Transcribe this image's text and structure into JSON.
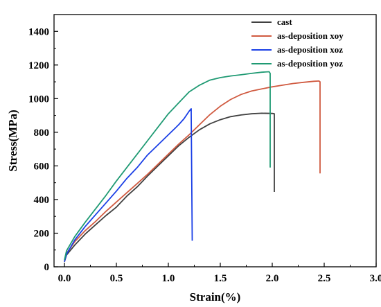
{
  "chart_data": {
    "type": "line",
    "xlabel": "Strain(%)",
    "ylabel": "Stress(MPa)",
    "xlim": [
      -0.1,
      3.0
    ],
    "ylim": [
      0,
      1500
    ],
    "xticks": [
      0.0,
      0.5,
      1.0,
      1.5,
      2.0,
      2.5,
      3.0
    ],
    "xtick_labels": [
      "0.0",
      "0.5",
      "1.0",
      "1.5",
      "2.0",
      "2.5",
      "3.0"
    ],
    "yticks": [
      0,
      200,
      400,
      600,
      800,
      1000,
      1200,
      1400
    ],
    "ytick_labels": [
      "0",
      "200",
      "400",
      "600",
      "800",
      "1000",
      "1200",
      "1400"
    ],
    "grid": false,
    "legend_position": "top-right",
    "series": [
      {
        "name": "cast",
        "color": "#404040",
        "points": [
          [
            0.0,
            30
          ],
          [
            0.02,
            70
          ],
          [
            0.1,
            130
          ],
          [
            0.2,
            195
          ],
          [
            0.3,
            250
          ],
          [
            0.4,
            305
          ],
          [
            0.5,
            355
          ],
          [
            0.6,
            420
          ],
          [
            0.7,
            475
          ],
          [
            0.8,
            540
          ],
          [
            0.9,
            600
          ],
          [
            1.0,
            660
          ],
          [
            1.1,
            720
          ],
          [
            1.2,
            770
          ],
          [
            1.3,
            815
          ],
          [
            1.4,
            850
          ],
          [
            1.5,
            875
          ],
          [
            1.6,
            893
          ],
          [
            1.7,
            903
          ],
          [
            1.8,
            910
          ],
          [
            1.9,
            913
          ],
          [
            2.0,
            912
          ],
          [
            2.02,
            910
          ],
          [
            2.02,
            445
          ]
        ]
      },
      {
        "name": "as-deposition xoy",
        "color": "#d05a40",
        "points": [
          [
            0.0,
            30
          ],
          [
            0.02,
            80
          ],
          [
            0.1,
            150
          ],
          [
            0.2,
            215
          ],
          [
            0.3,
            270
          ],
          [
            0.4,
            330
          ],
          [
            0.5,
            385
          ],
          [
            0.6,
            440
          ],
          [
            0.7,
            495
          ],
          [
            0.8,
            550
          ],
          [
            0.9,
            610
          ],
          [
            1.0,
            670
          ],
          [
            1.1,
            730
          ],
          [
            1.2,
            785
          ],
          [
            1.3,
            845
          ],
          [
            1.4,
            905
          ],
          [
            1.5,
            955
          ],
          [
            1.6,
            995
          ],
          [
            1.7,
            1025
          ],
          [
            1.8,
            1045
          ],
          [
            1.9,
            1058
          ],
          [
            2.0,
            1070
          ],
          [
            2.1,
            1080
          ],
          [
            2.2,
            1090
          ],
          [
            2.3,
            1097
          ],
          [
            2.4,
            1103
          ],
          [
            2.45,
            1105
          ],
          [
            2.46,
            1100
          ],
          [
            2.46,
            555
          ]
        ]
      },
      {
        "name": "as-deposition xoz",
        "color": "#1a3fe6",
        "points": [
          [
            0.0,
            30
          ],
          [
            0.02,
            75
          ],
          [
            0.1,
            160
          ],
          [
            0.2,
            240
          ],
          [
            0.3,
            310
          ],
          [
            0.4,
            380
          ],
          [
            0.5,
            450
          ],
          [
            0.6,
            525
          ],
          [
            0.7,
            590
          ],
          [
            0.8,
            665
          ],
          [
            0.9,
            725
          ],
          [
            1.0,
            785
          ],
          [
            1.1,
            845
          ],
          [
            1.15,
            880
          ],
          [
            1.2,
            925
          ],
          [
            1.22,
            940
          ],
          [
            1.22,
            920
          ],
          [
            1.23,
            155
          ]
        ]
      },
      {
        "name": "as-deposition yoz",
        "color": "#1f9a73",
        "points": [
          [
            0.0,
            40
          ],
          [
            0.02,
            95
          ],
          [
            0.1,
            180
          ],
          [
            0.2,
            265
          ],
          [
            0.3,
            345
          ],
          [
            0.4,
            425
          ],
          [
            0.5,
            510
          ],
          [
            0.6,
            590
          ],
          [
            0.7,
            670
          ],
          [
            0.8,
            750
          ],
          [
            0.9,
            830
          ],
          [
            1.0,
            910
          ],
          [
            1.1,
            975
          ],
          [
            1.2,
            1040
          ],
          [
            1.3,
            1080
          ],
          [
            1.4,
            1110
          ],
          [
            1.5,
            1125
          ],
          [
            1.6,
            1135
          ],
          [
            1.7,
            1142
          ],
          [
            1.8,
            1150
          ],
          [
            1.9,
            1157
          ],
          [
            1.97,
            1160
          ],
          [
            1.98,
            1150
          ],
          [
            1.98,
            590
          ]
        ]
      }
    ]
  }
}
